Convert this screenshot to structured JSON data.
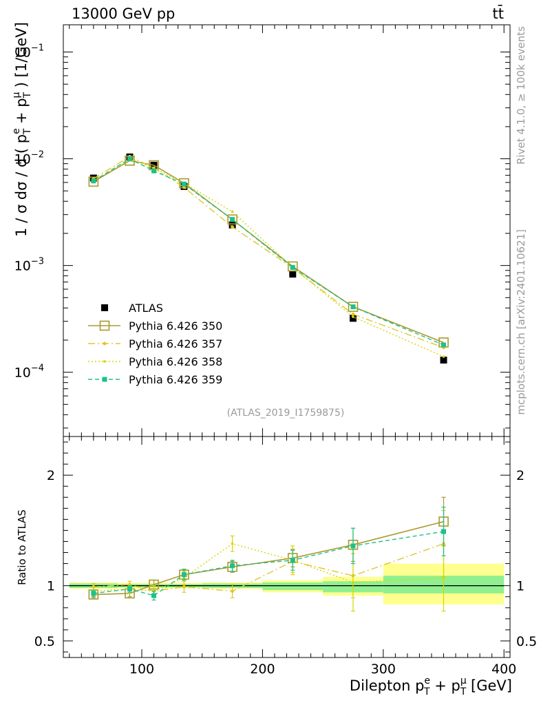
{
  "header": {
    "left": "13000 GeV pp",
    "right": "tt̄"
  },
  "side_text": {
    "top": "Rivet 4.1.0, ≥ 100k events",
    "bottom": "mcplots.cern.ch [arXiv:2401.10621]"
  },
  "analysis_label": "(ATLAS_2019_I1759875)",
  "colors": {
    "data": "#000000",
    "p350": "#a89a2e",
    "p357": "#e0c62a",
    "p358": "#d4d800",
    "p359": "#1ec08a",
    "band_inner": "#90f090",
    "band_outer": "#ffff90"
  },
  "chart_data": [
    {
      "type": "scatter",
      "panel": "main",
      "yscale": "log",
      "ylabel": "1 / σ dσ / d ( pᵀᵉ + pᵀᵘ ) [1/GeV]",
      "ylabel_parts": {
        "a": "1 / σ  dσ / d ( p",
        "sup1": "e",
        "sub": "T",
        "b": " + p",
        "sup2": "μ",
        "c": " ) [1/GeV]"
      },
      "xlim": [
        35,
        405
      ],
      "ylim": [
        2.5e-05,
        0.18
      ],
      "yticks": [
        {
          "value": 0.1,
          "base": "10",
          "exp": "−1"
        },
        {
          "value": 0.01,
          "base": "10",
          "exp": "−2"
        },
        {
          "value": 0.001,
          "base": "10",
          "exp": "−3"
        },
        {
          "value": 0.0001,
          "base": "10",
          "exp": "−4"
        }
      ],
      "legend_position": "bottom-left",
      "series": [
        {
          "name": "ATLAS",
          "kind": "data",
          "x": [
            60,
            90,
            110,
            135,
            175,
            225,
            275,
            350
          ],
          "y": [
            0.0066,
            0.0104,
            0.0087,
            0.0055,
            0.0024,
            0.00083,
            0.00032,
            0.00013
          ]
        },
        {
          "name": "Pythia 6.426 350",
          "kind": "p350",
          "x": [
            60,
            90,
            110,
            135,
            175,
            225,
            275,
            350
          ],
          "y": [
            0.0061,
            0.0096,
            0.0087,
            0.0059,
            0.0027,
            0.00098,
            0.00041,
            0.00019
          ]
        },
        {
          "name": "Pythia 6.426 357",
          "kind": "p357",
          "x": [
            60,
            90,
            110,
            135,
            175,
            225,
            275,
            350
          ],
          "y": [
            0.0065,
            0.0105,
            0.0082,
            0.0054,
            0.0023,
            0.00095,
            0.00035,
            0.00017
          ]
        },
        {
          "name": "Pythia 6.426 358",
          "kind": "p358",
          "x": [
            60,
            90,
            110,
            135,
            175,
            225,
            275,
            350
          ],
          "y": [
            0.0062,
            0.01,
            0.0082,
            0.0059,
            0.0032,
            0.00096,
            0.00033,
            0.00014
          ]
        },
        {
          "name": "Pythia 6.426 359",
          "kind": "p359",
          "x": [
            60,
            90,
            110,
            135,
            175,
            225,
            275,
            350
          ],
          "y": [
            0.0062,
            0.01,
            0.0077,
            0.0058,
            0.0027,
            0.00096,
            0.00041,
            0.00018
          ]
        }
      ]
    },
    {
      "type": "scatter",
      "panel": "ratio",
      "ylabel": "Ratio to ATLAS",
      "xlabel_parts": {
        "a": "Dilepton p",
        "sup1": "e",
        "sub": "T",
        "b": " + p",
        "sup2": "μ",
        "c": " [GeV]"
      },
      "xlim": [
        35,
        405
      ],
      "ylim": [
        0.35,
        2.35
      ],
      "xticks": [
        100,
        200,
        300,
        400
      ],
      "yticks": [
        0.5,
        1,
        2
      ],
      "ytick_labels": [
        "0.5",
        "1",
        "2"
      ],
      "reference": 1,
      "bands": [
        {
          "x0": 40,
          "x1": 80,
          "inner": [
            0.98,
            1.02
          ],
          "outer": [
            0.97,
            1.03
          ]
        },
        {
          "x0": 80,
          "x1": 100,
          "inner": [
            0.985,
            1.015
          ],
          "outer": [
            0.975,
            1.025
          ]
        },
        {
          "x0": 100,
          "x1": 120,
          "inner": [
            0.985,
            1.015
          ],
          "outer": [
            0.975,
            1.025
          ]
        },
        {
          "x0": 120,
          "x1": 150,
          "inner": [
            0.985,
            1.015
          ],
          "outer": [
            0.975,
            1.025
          ]
        },
        {
          "x0": 150,
          "x1": 200,
          "inner": [
            0.98,
            1.02
          ],
          "outer": [
            0.97,
            1.03
          ]
        },
        {
          "x0": 200,
          "x1": 250,
          "inner": [
            0.96,
            1.03
          ],
          "outer": [
            0.94,
            1.05
          ]
        },
        {
          "x0": 250,
          "x1": 300,
          "inner": [
            0.94,
            1.04
          ],
          "outer": [
            0.91,
            1.08
          ]
        },
        {
          "x0": 300,
          "x1": 400,
          "inner": [
            0.93,
            1.09
          ],
          "outer": [
            0.83,
            1.2
          ]
        }
      ],
      "series": [
        {
          "name": "Pythia 6.426 350",
          "kind": "p350",
          "x": [
            60,
            90,
            110,
            135,
            175,
            225,
            275,
            350
          ],
          "y": [
            0.92,
            0.93,
            1.01,
            1.1,
            1.17,
            1.25,
            1.37,
            1.58
          ],
          "err": [
            0.03,
            0.03,
            0.04,
            0.04,
            0.05,
            0.08,
            0.15,
            0.22
          ]
        },
        {
          "name": "Pythia 6.426 357",
          "kind": "p357",
          "x": [
            60,
            90,
            110,
            135,
            175,
            225,
            275,
            350
          ],
          "y": [
            0.99,
            1.01,
            0.95,
            0.99,
            0.95,
            1.22,
            1.09,
            1.38
          ],
          "err": [
            0.03,
            0.03,
            0.04,
            0.05,
            0.06,
            0.1,
            0.2,
            0.3
          ]
        },
        {
          "name": "Pythia 6.426 358",
          "kind": "p358",
          "x": [
            60,
            90,
            110,
            135,
            175,
            225,
            275,
            350
          ],
          "y": [
            0.95,
            0.97,
            0.95,
            1.07,
            1.38,
            1.23,
            1.03,
            1.07
          ],
          "err": [
            0.04,
            0.04,
            0.05,
            0.06,
            0.07,
            0.13,
            0.26,
            0.3
          ]
        },
        {
          "name": "Pythia 6.426 359",
          "kind": "p359",
          "x": [
            60,
            90,
            110,
            135,
            175,
            225,
            275,
            350
          ],
          "y": [
            0.93,
            0.97,
            0.91,
            1.1,
            1.18,
            1.23,
            1.36,
            1.49
          ],
          "err": [
            0.03,
            0.03,
            0.04,
            0.05,
            0.05,
            0.09,
            0.16,
            0.22
          ]
        }
      ]
    }
  ]
}
